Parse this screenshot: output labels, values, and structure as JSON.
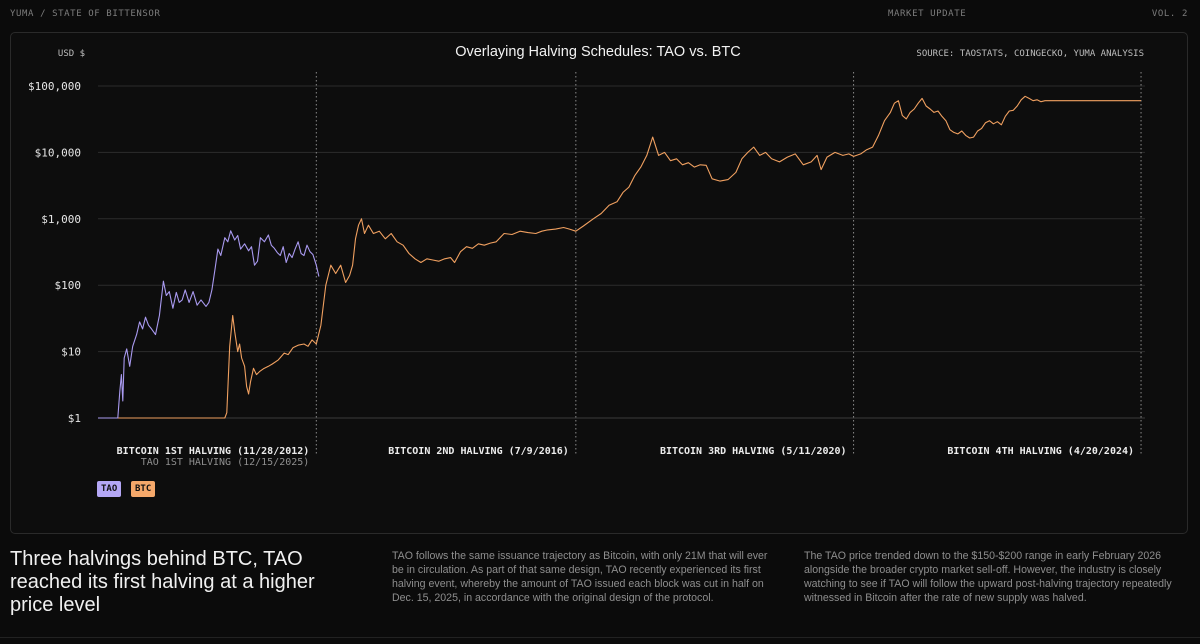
{
  "header": {
    "left": "YUMA / STATE OF BITTENSOR",
    "center": "MARKET UPDATE",
    "right": "VOL. 2"
  },
  "chart_data": {
    "type": "line",
    "title": "Overlaying Halving Schedules: TAO vs. BTC",
    "ylabel": "USD $",
    "source": "SOURCE: TAOSTATS, COINGECKO, YUMA ANALYSIS",
    "yscale": "log",
    "ylim": [
      1,
      100000
    ],
    "yticks": [
      {
        "value": 1,
        "label": "$1"
      },
      {
        "value": 10,
        "label": "$10"
      },
      {
        "value": 100,
        "label": "$100"
      },
      {
        "value": 1000,
        "label": "$1,000"
      },
      {
        "value": 10000,
        "label": "$10,000"
      },
      {
        "value": 100000,
        "label": "$100,000"
      }
    ],
    "x_unit": "days (TAO days shifted so the TAO 1st halving aligns with the BTC 1st halving)",
    "xlim": [
      0,
      4780
    ],
    "halvings": [
      {
        "x": 1102,
        "label": "BITCOIN 1ST HALVING (11/28/2012)",
        "sublabel": "TAO 1ST HALVING (12/15/2025)"
      },
      {
        "x": 2412,
        "label": "BITCOIN 2ND HALVING (7/9/2016)",
        "sublabel": ""
      },
      {
        "x": 3814,
        "label": "BITCOIN 3RD HALVING (5/11/2020)",
        "sublabel": ""
      },
      {
        "x": 5265,
        "label": "BITCOIN 4TH HALVING (4/20/2024)",
        "sublabel": ""
      }
    ],
    "series": [
      {
        "name": "TAO",
        "color": "#a99af0",
        "points": [
          [
            0,
            1
          ],
          [
            80,
            1
          ],
          [
            100,
            1
          ],
          [
            110,
            2.5
          ],
          [
            118,
            4.5
          ],
          [
            125,
            1.8
          ],
          [
            132,
            8
          ],
          [
            145,
            11
          ],
          [
            160,
            6
          ],
          [
            175,
            12
          ],
          [
            195,
            18
          ],
          [
            210,
            28
          ],
          [
            225,
            22
          ],
          [
            240,
            33
          ],
          [
            255,
            25
          ],
          [
            270,
            22
          ],
          [
            290,
            18
          ],
          [
            310,
            35
          ],
          [
            330,
            115
          ],
          [
            345,
            70
          ],
          [
            360,
            80
          ],
          [
            378,
            45
          ],
          [
            395,
            78
          ],
          [
            410,
            55
          ],
          [
            425,
            60
          ],
          [
            440,
            85
          ],
          [
            460,
            55
          ],
          [
            480,
            80
          ],
          [
            500,
            50
          ],
          [
            520,
            60
          ],
          [
            545,
            48
          ],
          [
            560,
            55
          ],
          [
            575,
            85
          ],
          [
            590,
            170
          ],
          [
            605,
            350
          ],
          [
            620,
            280
          ],
          [
            640,
            520
          ],
          [
            655,
            450
          ],
          [
            670,
            660
          ],
          [
            690,
            480
          ],
          [
            705,
            560
          ],
          [
            720,
            350
          ],
          [
            740,
            420
          ],
          [
            760,
            330
          ],
          [
            775,
            380
          ],
          [
            790,
            200
          ],
          [
            805,
            230
          ],
          [
            820,
            520
          ],
          [
            840,
            450
          ],
          [
            860,
            570
          ],
          [
            875,
            400
          ],
          [
            890,
            360
          ],
          [
            905,
            310
          ],
          [
            920,
            280
          ],
          [
            935,
            380
          ],
          [
            950,
            220
          ],
          [
            965,
            300
          ],
          [
            980,
            260
          ],
          [
            995,
            350
          ],
          [
            1010,
            450
          ],
          [
            1025,
            300
          ],
          [
            1040,
            280
          ],
          [
            1055,
            400
          ],
          [
            1070,
            320
          ],
          [
            1085,
            290
          ],
          [
            1102,
            200
          ],
          [
            1115,
            135
          ]
        ]
      },
      {
        "name": "BTC",
        "color": "#f0a060",
        "points": [
          [
            0,
            1
          ],
          [
            600,
            1
          ],
          [
            640,
            1
          ],
          [
            650,
            1.2
          ],
          [
            665,
            12
          ],
          [
            680,
            35
          ],
          [
            690,
            20
          ],
          [
            705,
            10
          ],
          [
            715,
            13
          ],
          [
            725,
            8
          ],
          [
            740,
            6
          ],
          [
            750,
            3
          ],
          [
            760,
            2.3
          ],
          [
            770,
            3.5
          ],
          [
            785,
            5.6
          ],
          [
            800,
            4.5
          ],
          [
            815,
            5
          ],
          [
            835,
            5.5
          ],
          [
            860,
            6
          ],
          [
            880,
            6.5
          ],
          [
            910,
            7.5
          ],
          [
            940,
            9.5
          ],
          [
            960,
            9
          ],
          [
            985,
            11.5
          ],
          [
            1010,
            12.5
          ],
          [
            1040,
            13
          ],
          [
            1060,
            12
          ],
          [
            1080,
            15
          ],
          [
            1102,
            13
          ],
          [
            1125,
            25
          ],
          [
            1150,
            100
          ],
          [
            1175,
            200
          ],
          [
            1200,
            150
          ],
          [
            1225,
            200
          ],
          [
            1250,
            110
          ],
          [
            1270,
            140
          ],
          [
            1285,
            200
          ],
          [
            1300,
            500
          ],
          [
            1315,
            800
          ],
          [
            1330,
            1000
          ],
          [
            1345,
            600
          ],
          [
            1365,
            800
          ],
          [
            1390,
            600
          ],
          [
            1420,
            650
          ],
          [
            1450,
            500
          ],
          [
            1480,
            600
          ],
          [
            1510,
            450
          ],
          [
            1540,
            400
          ],
          [
            1570,
            300
          ],
          [
            1600,
            250
          ],
          [
            1630,
            220
          ],
          [
            1660,
            250
          ],
          [
            1690,
            240
          ],
          [
            1720,
            230
          ],
          [
            1750,
            250
          ],
          [
            1780,
            260
          ],
          [
            1800,
            220
          ],
          [
            1830,
            320
          ],
          [
            1860,
            380
          ],
          [
            1890,
            360
          ],
          [
            1920,
            420
          ],
          [
            1950,
            400
          ],
          [
            1980,
            430
          ],
          [
            2010,
            450
          ],
          [
            2050,
            600
          ],
          [
            2090,
            580
          ],
          [
            2130,
            650
          ],
          [
            2170,
            620
          ],
          [
            2210,
            600
          ],
          [
            2240,
            650
          ],
          [
            2270,
            680
          ],
          [
            2310,
            700
          ],
          [
            2350,
            740
          ],
          [
            2380,
            700
          ],
          [
            2412,
            650
          ],
          [
            2450,
            780
          ],
          [
            2500,
            1000
          ],
          [
            2540,
            1200
          ],
          [
            2580,
            1600
          ],
          [
            2620,
            1800
          ],
          [
            2650,
            2500
          ],
          [
            2680,
            3000
          ],
          [
            2710,
            4500
          ],
          [
            2740,
            6000
          ],
          [
            2770,
            9000
          ],
          [
            2800,
            17000
          ],
          [
            2830,
            9000
          ],
          [
            2860,
            10000
          ],
          [
            2890,
            7500
          ],
          [
            2920,
            8000
          ],
          [
            2950,
            6500
          ],
          [
            2980,
            7000
          ],
          [
            3010,
            6000
          ],
          [
            3040,
            6500
          ],
          [
            3070,
            6400
          ],
          [
            3100,
            4000
          ],
          [
            3140,
            3700
          ],
          [
            3180,
            3900
          ],
          [
            3220,
            5000
          ],
          [
            3250,
            8000
          ],
          [
            3280,
            10000
          ],
          [
            3310,
            12000
          ],
          [
            3340,
            9000
          ],
          [
            3370,
            10000
          ],
          [
            3400,
            8000
          ],
          [
            3440,
            7200
          ],
          [
            3480,
            8500
          ],
          [
            3520,
            9500
          ],
          [
            3560,
            6500
          ],
          [
            3600,
            7200
          ],
          [
            3630,
            9000
          ],
          [
            3650,
            5500
          ],
          [
            3680,
            8500
          ],
          [
            3720,
            10000
          ],
          [
            3760,
            9000
          ],
          [
            3790,
            9500
          ],
          [
            3814,
            8700
          ],
          [
            3850,
            9500
          ],
          [
            3880,
            11000
          ],
          [
            3910,
            12000
          ],
          [
            3940,
            18000
          ],
          [
            3970,
            30000
          ],
          [
            4000,
            40000
          ],
          [
            4020,
            55000
          ],
          [
            4040,
            60000
          ],
          [
            4060,
            36000
          ],
          [
            4080,
            32000
          ],
          [
            4100,
            40000
          ],
          [
            4120,
            45000
          ],
          [
            4140,
            55000
          ],
          [
            4160,
            65000
          ],
          [
            4180,
            50000
          ],
          [
            4200,
            45000
          ],
          [
            4220,
            40000
          ],
          [
            4240,
            42000
          ],
          [
            4260,
            35000
          ],
          [
            4280,
            30000
          ],
          [
            4300,
            22000
          ],
          [
            4320,
            20000
          ],
          [
            4340,
            19000
          ],
          [
            4360,
            21000
          ],
          [
            4380,
            18000
          ],
          [
            4400,
            16500
          ],
          [
            4420,
            17000
          ],
          [
            4440,
            21000
          ],
          [
            4460,
            23000
          ],
          [
            4480,
            28000
          ],
          [
            4500,
            30000
          ],
          [
            4520,
            27000
          ],
          [
            4540,
            29000
          ],
          [
            4560,
            26000
          ],
          [
            4580,
            35000
          ],
          [
            4600,
            42000
          ],
          [
            4620,
            43000
          ],
          [
            4640,
            50000
          ],
          [
            4660,
            62000
          ],
          [
            4680,
            70000
          ],
          [
            4700,
            65000
          ],
          [
            4720,
            60000
          ],
          [
            4740,
            62000
          ],
          [
            4760,
            58000
          ],
          [
            4780,
            60000
          ],
          [
            5265,
            60000
          ]
        ]
      }
    ],
    "legend": [
      "TAO",
      "BTC"
    ]
  },
  "text": {
    "headline": "Three halvings behind BTC, TAO reached its first halving at a higher price level",
    "para1": "TAO follows the same issuance trajectory as Bitcoin, with only 21M that will ever be in circulation. As part of that same design, TAO recently experienced its first halving event, whereby the amount of TAO issued each block was cut in half on Dec. 15, 2025, in accordance with the original design of the protocol.",
    "para2": "The TAO price trended down to the $150-$200 range in early February 2026 alongside the broader crypto market sell-off. However, the industry is closely watching to see if TAO will follow the upward post-halving trajectory repeatedly witnessed in Bitcoin after the rate of new supply was halved."
  },
  "colors": {
    "tao": "#a99af0",
    "btc": "#f0a060",
    "background": "#0b0b0b"
  }
}
